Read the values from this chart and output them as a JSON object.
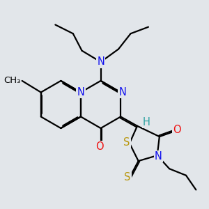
{
  "bg_color": "#e2e6ea",
  "bond_color": "#000000",
  "bond_lw": 1.6,
  "atom_colors": {
    "N": "#1010ee",
    "O": "#ee1010",
    "S": "#b8960a",
    "H": "#2aa0a0",
    "C": "#000000"
  },
  "font_size": 10.5,
  "font_size_small": 9.5
}
